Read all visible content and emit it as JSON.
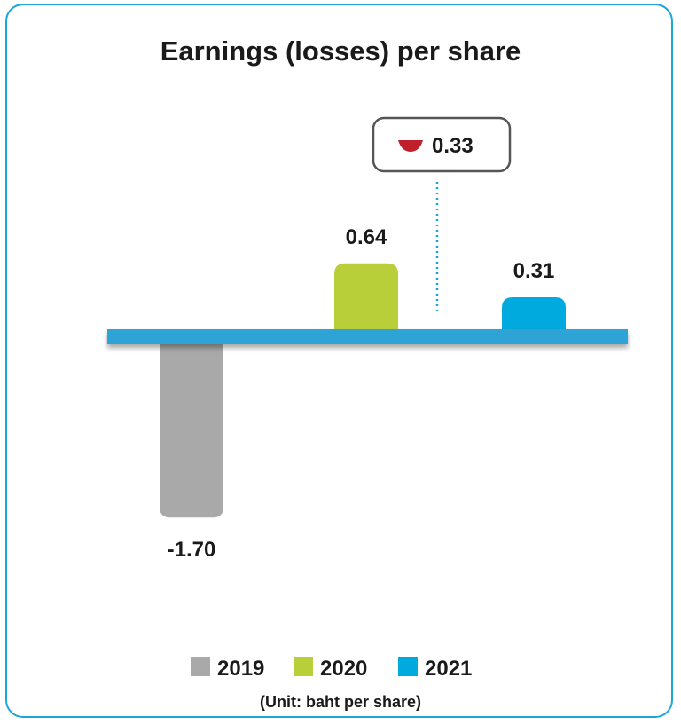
{
  "chart_data": {
    "type": "bar",
    "title": "Earnings (losses) per share",
    "categories": [
      "2019",
      "2020",
      "2021"
    ],
    "values": [
      -1.7,
      0.64,
      0.31
    ],
    "value_labels": [
      "-1.70",
      "0.64",
      "0.31"
    ],
    "colors": [
      "#a9a9a9",
      "#b9cf3a",
      "#00a9de"
    ],
    "axis_color": "#2fa3d6",
    "unit": "(Unit: baht per share)",
    "change": {
      "label": "0.33",
      "direction": "down",
      "color": "#c0202b",
      "from": "2020",
      "to": "2021"
    },
    "legend_placement": "bottom-center",
    "grid": false
  }
}
